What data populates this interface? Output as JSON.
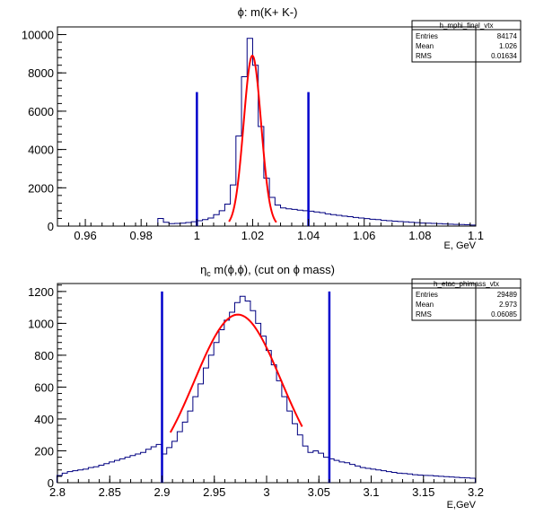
{
  "chart_data": [
    {
      "type": "histogram",
      "title": "ϕ: m(K+ K-)",
      "xlabel": "E, GeV",
      "ylabel": "",
      "xlim": [
        0.95,
        1.1
      ],
      "ylim": [
        0,
        10400
      ],
      "xticks": [
        "0.96",
        "0.98",
        "1",
        "1.02",
        "1.04",
        "1.06",
        "1.08",
        "1.1"
      ],
      "xtick_values": [
        0.96,
        0.98,
        1.0,
        1.02,
        1.04,
        1.06,
        1.08,
        1.1
      ],
      "yticks": [
        "0",
        "2000",
        "4000",
        "6000",
        "8000",
        "10000"
      ],
      "ytick_values": [
        0,
        2000,
        4000,
        6000,
        8000,
        10000
      ],
      "stats": {
        "name": "h_mphi_final_vtx",
        "rows": [
          [
            "Entries",
            "84174"
          ],
          [
            "Mean",
            "1.026"
          ],
          [
            "RMS",
            "0.01634"
          ]
        ]
      },
      "cut_lines": [
        1.0,
        1.04
      ],
      "cut_line_top": 7000,
      "hist": {
        "x": [
          0.987,
          0.989,
          0.991,
          0.993,
          0.995,
          0.997,
          0.999,
          1.001,
          1.003,
          1.005,
          1.007,
          1.009,
          1.011,
          1.013,
          1.015,
          1.017,
          1.019,
          1.021,
          1.023,
          1.025,
          1.027,
          1.029,
          1.031,
          1.033,
          1.035,
          1.037,
          1.039,
          1.041,
          1.043,
          1.045,
          1.047,
          1.049,
          1.051,
          1.053,
          1.055,
          1.057,
          1.059,
          1.061,
          1.063,
          1.065,
          1.067,
          1.069,
          1.071,
          1.073,
          1.075,
          1.077,
          1.079,
          1.081,
          1.083,
          1.085,
          1.087,
          1.089,
          1.091,
          1.093,
          1.095,
          1.097,
          1.099
        ],
        "y": [
          400,
          200,
          130,
          140,
          150,
          190,
          230,
          280,
          340,
          420,
          600,
          800,
          1150,
          2150,
          4700,
          7800,
          9800,
          8400,
          5200,
          2500,
          1500,
          1100,
          950,
          900,
          870,
          830,
          800,
          780,
          740,
          700,
          640,
          600,
          560,
          520,
          490,
          450,
          420,
          390,
          360,
          340,
          300,
          280,
          260,
          240,
          220,
          200,
          180,
          160,
          150,
          140,
          130,
          110,
          100,
          90,
          80,
          70,
          50
        ]
      },
      "fit": {
        "type": "gaussian",
        "amplitude": 8900,
        "mean": 1.0199,
        "sigma": 0.00312,
        "xmin": 1.0115,
        "xmax": 1.0285
      }
    },
    {
      "type": "histogram",
      "title": "η_c m(ϕ,ϕ), (cut on ϕ mass)",
      "title_parts": {
        "eta": "η",
        "sub": "c",
        "rest": " m(ϕ,ϕ), (cut on ϕ mass)"
      },
      "xlabel": "E,GeV",
      "ylabel": "",
      "xlim": [
        2.8,
        3.2
      ],
      "ylim": [
        0,
        1250
      ],
      "xticks": [
        "2.8",
        "2.85",
        "2.9",
        "2.95",
        "3",
        "3.05",
        "3.1",
        "3.15",
        "3.2"
      ],
      "xtick_values": [
        2.8,
        2.85,
        2.9,
        2.95,
        3.0,
        3.05,
        3.1,
        3.15,
        3.2
      ],
      "yticks": [
        "0",
        "200",
        "400",
        "600",
        "800",
        "1000",
        "1200"
      ],
      "ytick_values": [
        0,
        200,
        400,
        600,
        800,
        1000,
        1200
      ],
      "stats": {
        "name": "h_etac_phimass_vtx",
        "rows": [
          [
            "Entries",
            "29489"
          ],
          [
            "Mean",
            "2.973"
          ],
          [
            "RMS",
            "0.06085"
          ]
        ]
      },
      "cut_lines": [
        2.9,
        3.06
      ],
      "cut_line_top": 1200,
      "hist": {
        "x": [
          2.802,
          2.807,
          2.812,
          2.817,
          2.822,
          2.827,
          2.832,
          2.837,
          2.842,
          2.847,
          2.852,
          2.857,
          2.862,
          2.867,
          2.872,
          2.877,
          2.882,
          2.887,
          2.892,
          2.897,
          2.902,
          2.907,
          2.912,
          2.917,
          2.922,
          2.927,
          2.932,
          2.937,
          2.942,
          2.947,
          2.952,
          2.957,
          2.962,
          2.967,
          2.972,
          2.977,
          2.982,
          2.987,
          2.992,
          2.997,
          3.002,
          3.007,
          3.012,
          3.017,
          3.022,
          3.027,
          3.032,
          3.037,
          3.042,
          3.047,
          3.052,
          3.057,
          3.062,
          3.067,
          3.072,
          3.077,
          3.082,
          3.087,
          3.092,
          3.097,
          3.102,
          3.107,
          3.112,
          3.117,
          3.122,
          3.127,
          3.132,
          3.137,
          3.142,
          3.147,
          3.152,
          3.157,
          3.162,
          3.167,
          3.172,
          3.177,
          3.182,
          3.187,
          3.192,
          3.197
        ],
        "y": [
          45,
          60,
          70,
          75,
          80,
          85,
          95,
          100,
          110,
          120,
          130,
          140,
          150,
          160,
          170,
          180,
          190,
          210,
          225,
          240,
          180,
          220,
          260,
          320,
          380,
          450,
          540,
          620,
          720,
          800,
          880,
          960,
          1020,
          1070,
          1130,
          1170,
          1140,
          1080,
          1000,
          920,
          830,
          740,
          640,
          540,
          450,
          370,
          300,
          230,
          190,
          200,
          185,
          160,
          150,
          140,
          130,
          125,
          115,
          105,
          95,
          90,
          85,
          80,
          75,
          70,
          65,
          60,
          58,
          55,
          50,
          48,
          46,
          45,
          42,
          40,
          38,
          36,
          34,
          32,
          30,
          28
        ]
      },
      "fit": {
        "type": "gaussian",
        "amplitude": 1055,
        "mean": 2.9725,
        "sigma": 0.0415,
        "xmin": 2.908,
        "xmax": 3.034
      }
    }
  ]
}
